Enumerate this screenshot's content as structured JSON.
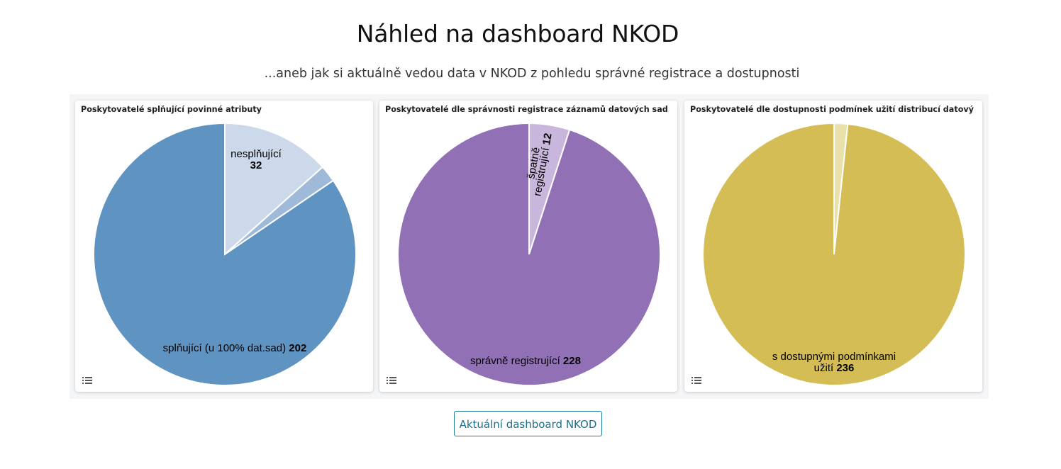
{
  "page": {
    "title": "Náhled na dashboard NKOD",
    "subtitle": "...aneb jak si aktuálně vedou data v NKOD z pohledu správné registrace a dostupnosti",
    "button_label": "Aktuální dashboard NKOD"
  },
  "chart_data": [
    {
      "type": "pie",
      "title": "Poskytovatelé splňující povinné atributy",
      "slices": [
        {
          "label": "nesplňující",
          "value": 32,
          "color": "#ccd9ea"
        },
        {
          "label": "",
          "value": 5,
          "color": "#9fb9d8"
        },
        {
          "label": "splňující (u 100% dat.sad)",
          "value": 202,
          "color": "#5f93c1"
        }
      ]
    },
    {
      "type": "pie",
      "title": "Poskytovatelé dle správnosti registrace záznamů datových sad...",
      "slices": [
        {
          "label": "špatně registrující",
          "value": 12,
          "color": "#c9b6dc"
        },
        {
          "label": "správně registrující",
          "value": 228,
          "color": "#9170b6"
        }
      ]
    },
    {
      "type": "pie",
      "title": "Poskytovatelé dle dostupnosti podmínek užití distribucí datový...",
      "slices": [
        {
          "label": "",
          "value": 4,
          "color": "#e9e0ab"
        },
        {
          "label": "s dostupnými podmínkami užití",
          "value": 236,
          "color": "#d5bd56"
        }
      ]
    }
  ]
}
